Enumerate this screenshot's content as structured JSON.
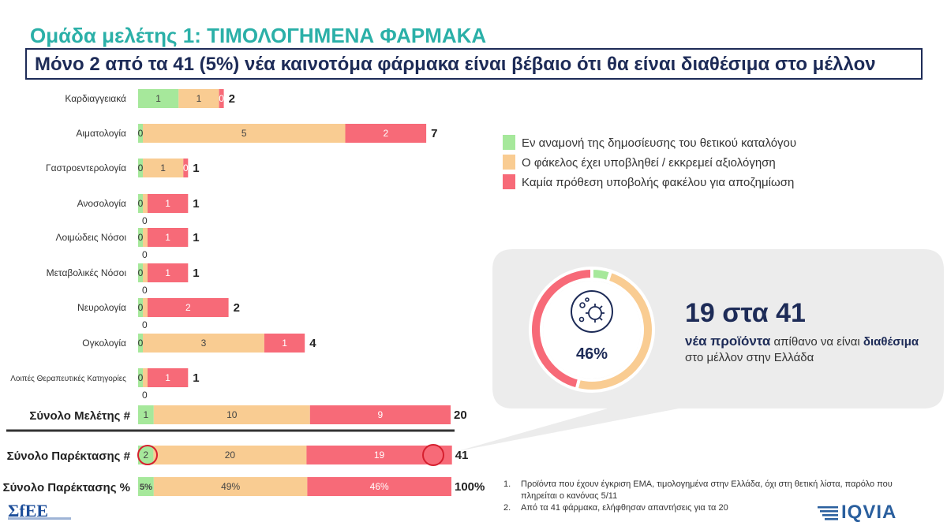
{
  "header": {
    "supertitle": "Ομάδα μελέτης 1: ΤΙΜΟΛΟΓΗΜΕΝΑ ΦΑΡΜΑΚΑ",
    "title": "Μόνο 2 από τα 41 (5%) νέα καινοτόμα φάρμακα είναι βέβαιο ότι θα είναι διαθέσιμα στο μέλλον"
  },
  "colors": {
    "green": "#a6e89b",
    "orange": "#f9cc92",
    "red": "#f76a78",
    "navy": "#1d2b57",
    "teal": "#2bb0a8",
    "callout_bg": "#ececec"
  },
  "legend": {
    "items": [
      {
        "label": "Εν αναμονή της δημοσίευσης του θετικού καταλόγου",
        "color": "#a6e89b"
      },
      {
        "label": "Ο φάκελος έχει υποβληθεί / εκκρεμεί αξιολόγηση",
        "color": "#f9cc92"
      },
      {
        "label": "Καμία πρόθεση υποβολής φακέλου για αποζημίωση",
        "color": "#f76a78"
      }
    ]
  },
  "chart_data": {
    "type": "bar",
    "orientation": "horizontal",
    "stacked": true,
    "categories": [
      "Καρδιαγγειακά",
      "Αιματολογία",
      "Γαστροεντερολογία",
      "Ανοσολογία",
      "Λοιμώδεις Νόσοι",
      "Μεταβολικές Νόσοι",
      "Νευρολογία",
      "Ογκολογία",
      "Λοιπές Θεραπευτικές Κατηγορίες"
    ],
    "series": [
      {
        "values": [
          1,
          0,
          0,
          0,
          0,
          0,
          0,
          0,
          0
        ]
      },
      {
        "values": [
          1,
          5,
          1,
          0,
          0,
          0,
          0,
          3,
          0
        ]
      },
      {
        "values": [
          0,
          2,
          0,
          1,
          1,
          1,
          2,
          1,
          1
        ]
      }
    ],
    "totals": [
      "2",
      "7",
      "1",
      "1",
      "1",
      "1",
      "2",
      "4",
      "1"
    ],
    "below_labels": [
      "",
      "",
      "",
      "0",
      "0",
      "0",
      "0",
      "",
      "0"
    ],
    "summary_rows": [
      {
        "label": "Σύνολο Μελέτης #",
        "values": [
          1,
          10,
          9
        ],
        "labels": [
          "1",
          "10",
          "9"
        ],
        "total": "20"
      },
      {
        "label": "Σύνολο Παρέκτασης #",
        "values": [
          2,
          20,
          19
        ],
        "labels": [
          "2",
          "20",
          "19"
        ],
        "total": "41"
      },
      {
        "label": "Σύνολο Παρέκτασης %",
        "values": [
          5,
          49,
          46
        ],
        "labels": [
          "5%",
          "49%",
          "46%"
        ],
        "total": "100%"
      }
    ]
  },
  "callout": {
    "big": "19 στα 41",
    "sub_bold1": "νέα προϊόντα",
    "sub_rest1": " απίθανο να είναι ",
    "sub_bold2": "διαθέσιμα",
    "sub_rest2": " στο μέλλον στην Ελλάδα",
    "donut_pct": "46%",
    "donut_values": [
      5,
      49,
      46
    ],
    "icon": "virus-icon"
  },
  "footnotes": [
    {
      "num": "1.",
      "text": "Προϊόντα που έχουν έγκριση EMA, τιμολογημένα στην Ελλάδα, όχι στη θετική λίστα, παρόλο που πληρείται ο κανόνας 5/11"
    },
    {
      "num": "2.",
      "text": "Από τα 41 φάρμακα, ελήφθησαν απαντήσεις για τα 20"
    }
  ],
  "logos": {
    "left": "ΣfEE",
    "right": "IQVIA"
  }
}
